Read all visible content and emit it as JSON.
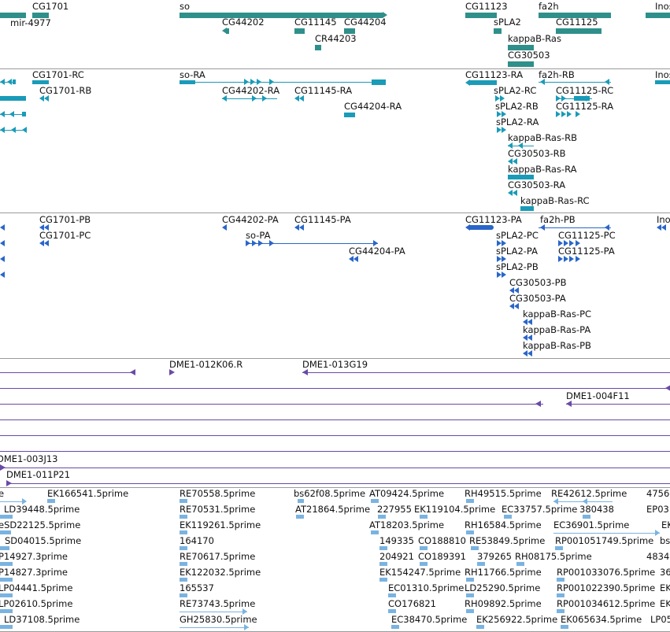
{
  "tracks": {
    "genes": {
      "labels": [
        "CG1701",
        "mir-4977",
        "so",
        "CG44202",
        "CG11145",
        "CG44204",
        "CR44203",
        "CG11123",
        "sPLA2",
        "fa2h",
        "CG11125",
        "kappaB-Ras",
        "CG30503",
        "Inos"
      ]
    },
    "transcripts_ra": {
      "labels": [
        "CG1701-RC",
        "CG1701-RB",
        "so-RA",
        "CG44202-RA",
        "CG11145-RA",
        "CG44204-RA",
        "CG11123-RA",
        "fa2h-RB",
        "Inos",
        "sPLA2-RC",
        "CG11125-RC",
        "sPLA2-RB",
        "CG11125-RA",
        "sPLA2-RA",
        "kappaB-Ras-RB",
        "CG30503-RB",
        "kappaB-Ras-RA",
        "CG30503-RA",
        "kappaB-Ras-RC"
      ]
    },
    "proteins_pa": {
      "labels": [
        "CG1701-PB",
        "CG1701-PC",
        "CG44202-PA",
        "CG11145-PA",
        "so-PA",
        "CG44204-PA",
        "CG11123-PA",
        "fa2h-PB",
        "Inos",
        "sPLA2-PC",
        "CG11125-PC",
        "sPLA2-PA",
        "CG11125-PA",
        "sPLA2-PB",
        "CG30503-PB",
        "CG30503-PA",
        "kappaB-Ras-PC",
        "kappaB-Ras-PA",
        "kappaB-Ras-PB"
      ]
    },
    "bac_clones": {
      "labels": [
        "DME1-012K06.R",
        "DME1-013G19",
        "DME1-004F11",
        "DME1-003J13",
        "DME1-011P21"
      ]
    },
    "est_reads": {
      "labels": [
        "e",
        "EK166541.5prime",
        "RE70558.5prime",
        "bs62f08.5prime",
        "AT09424.5prime",
        "RH49515.5prime",
        "RE42612.5prime",
        "4756",
        "LD39448.5prime",
        "RE70531.5prime",
        "AT21864.5prime",
        "227955",
        "EK119104.5prime",
        "EC33757.5prime",
        "380438",
        "EP03",
        "eSD22125.5prime",
        "EK119261.5prime",
        "AT18203.5prime",
        "RH16584.5prime",
        "EC36901.5prime",
        "EK",
        "SD04015.5prime",
        "164170",
        "149335",
        "CO188810",
        "RE53849.5prime",
        "RP001051749.5prime",
        "bs",
        "P14927.3prime",
        "RE70617.5prime",
        "204921",
        "CO189391",
        "379265",
        "RH08175.5prime",
        "4834",
        "P14827.3prime",
        "EK122032.5prime",
        "EK154247.5prime",
        "RH11766.5prime",
        "RP001033076.5prime",
        "36",
        "LP04441.5prime",
        "165537",
        "EC01310.5prime",
        "LD25290.5prime",
        "RP001022390.5prime",
        "EK",
        "LP02610.5prime",
        "RE73743.5prime",
        "CO176821",
        "RH09892.5prime",
        "RP001034612.5prime",
        "EK",
        "LD37108.5prime",
        "GH25830.5prime",
        "EC38470.5prime",
        "EK256922.5prime",
        "EK065634.5prime",
        "LP05"
      ]
    }
  }
}
